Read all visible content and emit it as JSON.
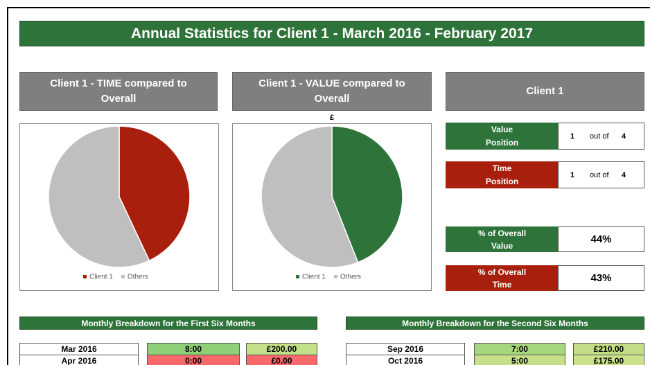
{
  "title": "Annual Statistics for Client 1 - March 2016 - February 2017",
  "headings": [
    "Client 1 - TIME compared to Overall",
    "Client 1 - VALUE compared to Overall",
    "Client 1"
  ],
  "chart_data": [
    {
      "type": "pie",
      "categories": [
        "Client 1",
        "Others"
      ],
      "values": [
        43,
        57
      ],
      "colors": [
        "#a8200d",
        "#bfbfbf"
      ]
    },
    {
      "type": "pie",
      "subtitle": "£",
      "categories": [
        "Client 1",
        "Others"
      ],
      "values": [
        44,
        56
      ],
      "colors": [
        "#2e7339",
        "#bfbfbf"
      ]
    }
  ],
  "positions": [
    {
      "label": "Value Position",
      "rank": 1,
      "separator": "out of",
      "total": 4,
      "color": "#2e7339"
    },
    {
      "label": "Time Position",
      "rank": 1,
      "separator": "out of",
      "total": 4,
      "color": "#a8200d"
    }
  ],
  "shares": [
    {
      "label": "% of Overall Value",
      "value": "44%",
      "color": "#2e7339"
    },
    {
      "label": "% of Overall Time",
      "value": "43%",
      "color": "#a8200d"
    }
  ],
  "breakdown": [
    {
      "title": "Monthly Breakdown for the First Six Months",
      "rows": [
        {
          "month": "Mar 2016",
          "time": "8:00",
          "value": "£200.00",
          "time_color": "#8fcf77",
          "value_color": "#c3df88"
        },
        {
          "month": "Apr 2016",
          "time": "0:00",
          "value": "£0.00",
          "time_color": "#f8696b",
          "value_color": "#f8696b"
        }
      ]
    },
    {
      "title": "Monthly Breakdown for the Second Six Months",
      "rows": [
        {
          "month": "Sep 2016",
          "time": "7:00",
          "value": "£210.00",
          "time_color": "#a8d67e",
          "value_color": "#c1de86"
        },
        {
          "month": "Oct 2016",
          "time": "5:00",
          "value": "£175.00",
          "time_color": "#c6e08a",
          "value_color": "#cbe28b"
        }
      ]
    }
  ]
}
